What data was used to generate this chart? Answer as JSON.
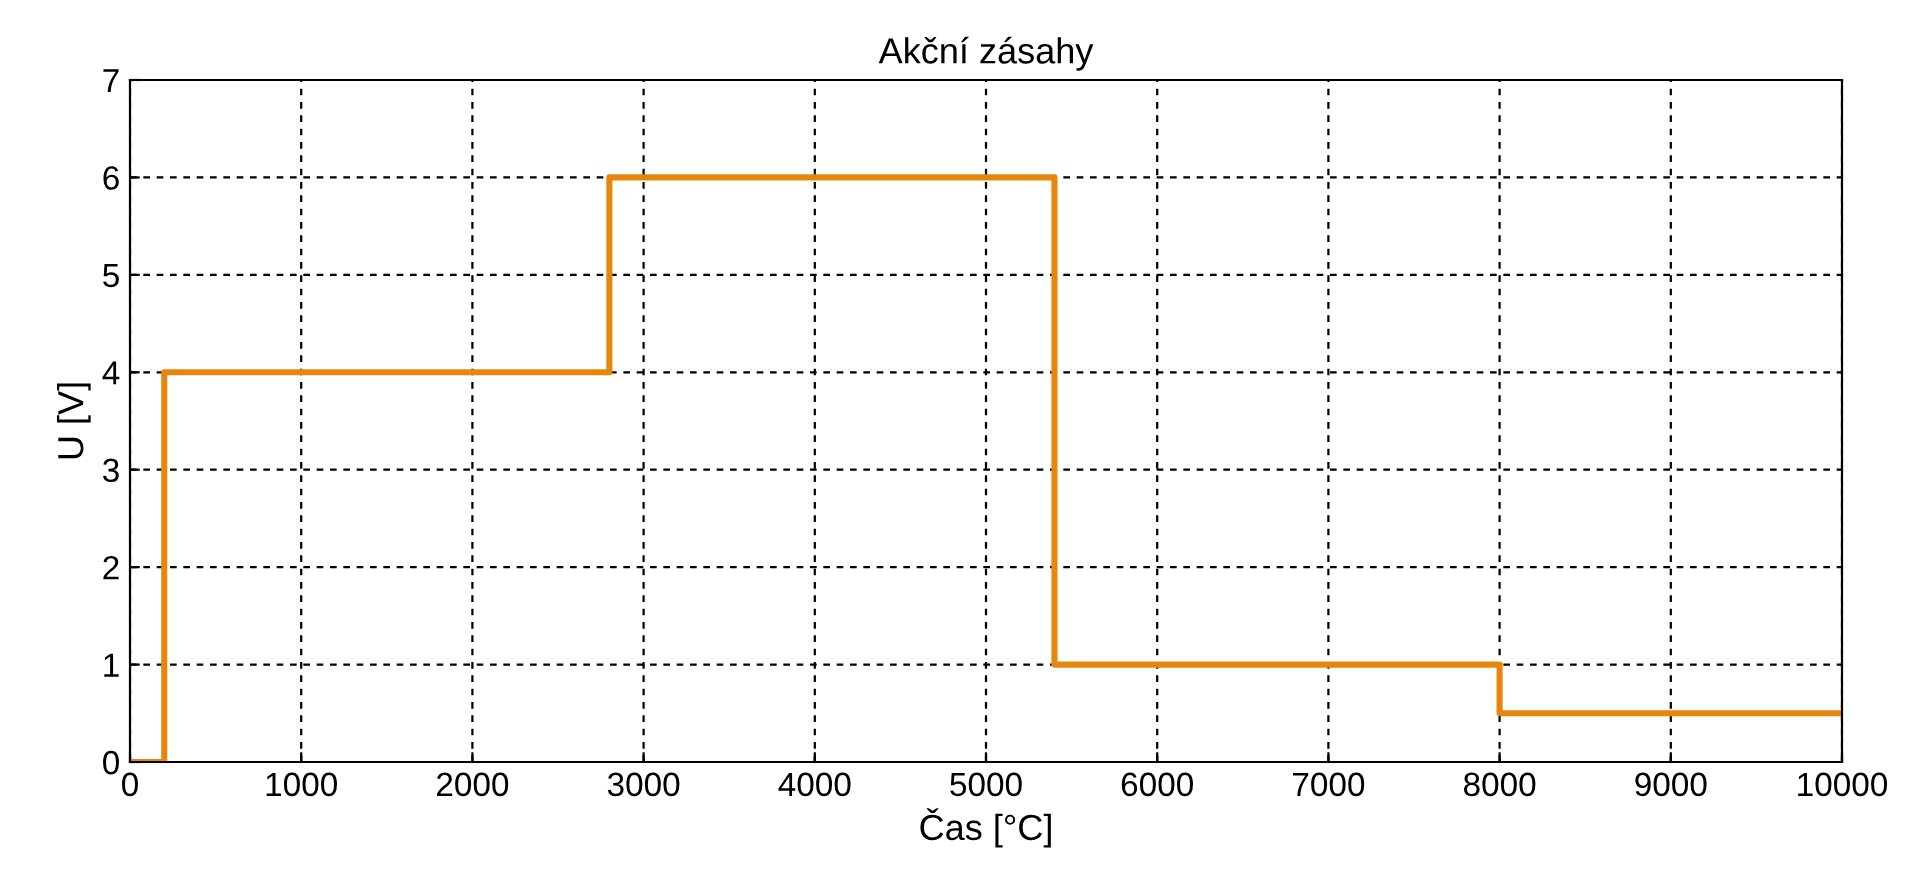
{
  "chart_data": {
    "type": "step",
    "title": "Akční zásahy",
    "xlabel": "Čas [°C]",
    "ylabel": "U [V]",
    "series": [
      {
        "color": "#e8860c",
        "x": [
          0,
          200,
          2800,
          5400,
          8000,
          10000
        ],
        "values": [
          0,
          4,
          6,
          1,
          0.5,
          0.5
        ]
      }
    ],
    "xlim": [
      0,
      10000
    ],
    "xticks": [
      0,
      1000,
      2000,
      3000,
      4000,
      5000,
      6000,
      7000,
      8000,
      9000,
      10000
    ],
    "ylim": [
      0,
      7
    ],
    "yticks": [
      0,
      1,
      2,
      3,
      4,
      5,
      6,
      7
    ],
    "grid": true,
    "line_style": "solid"
  }
}
